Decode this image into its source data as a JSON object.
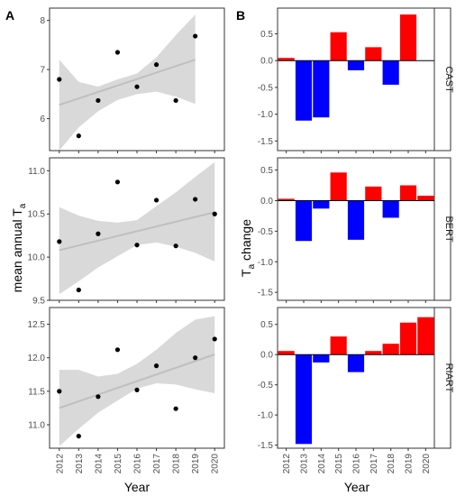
{
  "panel_labels": {
    "left": "A",
    "right": "B"
  },
  "left_ylabel": {
    "main": "mean annual T",
    "sub": "a"
  },
  "right_ylabel": {
    "main": "T",
    "sub": "a",
    "rest": " change"
  },
  "xlabel": "Year",
  "years": [
    "2012",
    "2013",
    "2014",
    "2015",
    "2016",
    "2017",
    "2018",
    "2019",
    "2020"
  ],
  "colors": {
    "point": "#000000",
    "band": "#d9d9d9",
    "trend": "#bfbfbf",
    "increase": "#ff0000",
    "decrease": "#0000ff"
  },
  "chart_data": [
    {
      "type": "scatter",
      "site": "CAST",
      "x": [
        2012,
        2013,
        2014,
        2015,
        2016,
        2017,
        2018,
        2019
      ],
      "y": [
        6.8,
        5.65,
        6.37,
        7.35,
        6.65,
        7.1,
        6.37,
        7.68
      ],
      "trend": {
        "y_start": 6.28,
        "y_end": 7.2
      },
      "ci_lower": [
        5.35,
        5.82,
        6.15,
        6.38,
        6.5,
        6.55,
        6.45,
        6.3
      ],
      "ci_upper": [
        7.2,
        6.75,
        6.65,
        6.8,
        6.92,
        7.25,
        7.7,
        8.12
      ],
      "ylim": [
        5.35,
        8.25
      ],
      "yticks": [
        6,
        7,
        8
      ]
    },
    {
      "type": "scatter",
      "site": "BERT",
      "x": [
        2012,
        2013,
        2014,
        2015,
        2016,
        2017,
        2018,
        2019,
        2020
      ],
      "y": [
        10.18,
        9.62,
        10.27,
        10.87,
        10.14,
        10.66,
        10.13,
        10.67,
        10.5
      ],
      "trend": {
        "y_start": 10.08,
        "y_end": 10.52
      },
      "ci_lower": [
        9.57,
        9.72,
        9.88,
        10.01,
        10.14,
        10.17,
        10.12,
        10.05,
        9.95
      ],
      "ci_upper": [
        10.58,
        10.48,
        10.42,
        10.4,
        10.43,
        10.59,
        10.75,
        10.93,
        11.1
      ],
      "ylim": [
        9.5,
        11.15
      ],
      "yticks": [
        9.5,
        10.0,
        10.5,
        11.0
      ]
    },
    {
      "type": "scatter",
      "site": "RIART",
      "x": [
        2012,
        2013,
        2014,
        2015,
        2016,
        2017,
        2018,
        2019,
        2020
      ],
      "y": [
        11.5,
        10.83,
        11.42,
        12.12,
        11.52,
        11.88,
        11.24,
        12.0,
        12.28
      ],
      "trend": {
        "y_start": 11.25,
        "y_end": 12.05
      },
      "ci_lower": [
        10.68,
        10.94,
        11.18,
        11.36,
        11.54,
        11.62,
        11.6,
        11.53,
        11.47
      ],
      "ci_upper": [
        11.82,
        11.82,
        11.72,
        11.76,
        11.91,
        12.12,
        12.37,
        12.57,
        12.62
      ],
      "ylim": [
        10.65,
        12.75
      ],
      "yticks": [
        11.0,
        11.5,
        12.0,
        12.5
      ]
    },
    {
      "type": "bar",
      "site": "CAST",
      "categories": [
        "2012",
        "2013",
        "2014",
        "2015",
        "2016",
        "2017",
        "2018",
        "2019"
      ],
      "values": [
        0.05,
        -1.12,
        -1.06,
        0.53,
        -0.18,
        0.25,
        -0.45,
        0.86
      ],
      "ylim": [
        -1.68,
        0.98
      ],
      "yticks": [
        -1.5,
        -1.0,
        -0.5,
        0.0,
        0.5
      ]
    },
    {
      "type": "bar",
      "site": "BERT",
      "categories": [
        "2012",
        "2013",
        "2014",
        "2015",
        "2016",
        "2017",
        "2018",
        "2019",
        "2020"
      ],
      "values": [
        0.03,
        -0.66,
        -0.13,
        0.46,
        -0.64,
        0.23,
        -0.28,
        0.25,
        0.08
      ],
      "ylim": [
        -1.63,
        0.7
      ],
      "yticks": [
        -1.5,
        -1.0,
        -0.5,
        0.0,
        0.5
      ]
    },
    {
      "type": "bar",
      "site": "RIART",
      "categories": [
        "2012",
        "2013",
        "2014",
        "2015",
        "2016",
        "2017",
        "2018",
        "2019",
        "2020"
      ],
      "values": [
        0.06,
        -1.48,
        -0.13,
        0.3,
        -0.29,
        0.06,
        0.18,
        0.53,
        0.62
      ],
      "ylim": [
        -1.55,
        0.78
      ],
      "yticks": [
        -1.5,
        -1.0,
        -0.5,
        0.0,
        0.5
      ]
    }
  ]
}
